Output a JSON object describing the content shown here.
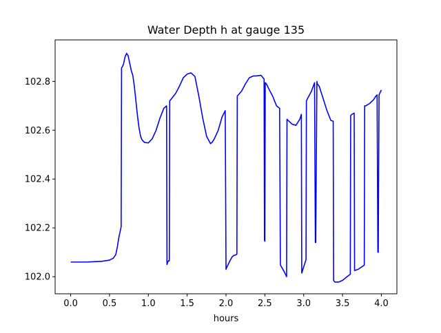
{
  "chart_data": {
    "type": "line",
    "title": "Water Depth h at gauge 135",
    "xlabel": "hours",
    "ylabel": "",
    "xlim": [
      -0.2,
      4.2
    ],
    "ylim": [
      101.93,
      102.97
    ],
    "grid": false,
    "legend": "none",
    "x_ticks": [
      0.0,
      0.5,
      1.0,
      1.5,
      2.0,
      2.5,
      3.0,
      3.5,
      4.0
    ],
    "x_tick_labels": [
      "0.0",
      "0.5",
      "1.0",
      "1.5",
      "2.0",
      "2.5",
      "3.0",
      "3.5",
      "4.0"
    ],
    "y_ticks": [
      102.0,
      102.2,
      102.4,
      102.6,
      102.8
    ],
    "y_tick_labels": [
      "102.0",
      "102.2",
      "102.4",
      "102.6",
      "102.8"
    ],
    "colors": {
      "line": "#0000ff",
      "axes": "#000000",
      "background": "#ffffff"
    },
    "series": [
      {
        "x": [
          0.0,
          0.2,
          0.4,
          0.5,
          0.55,
          0.58,
          0.6,
          0.62,
          0.64,
          0.65,
          0.655,
          0.665,
          0.68,
          0.7,
          0.72,
          0.74,
          0.76,
          0.78,
          0.8,
          0.82,
          0.84,
          0.86,
          0.88,
          0.9,
          0.92,
          0.95,
          1.0,
          1.05,
          1.1,
          1.15,
          1.2,
          1.235,
          1.24,
          1.25,
          1.26,
          1.27,
          1.275,
          1.3,
          1.35,
          1.4,
          1.45,
          1.5,
          1.55,
          1.6,
          1.65,
          1.7,
          1.75,
          1.8,
          1.82,
          1.85,
          1.9,
          1.95,
          1.99,
          2.0,
          2.005,
          2.05,
          2.08,
          2.1,
          2.13,
          2.14,
          2.145,
          2.2,
          2.25,
          2.3,
          2.35,
          2.4,
          2.45,
          2.49,
          2.495,
          2.5,
          2.505,
          2.52,
          2.55,
          2.6,
          2.65,
          2.69,
          2.7,
          2.705,
          2.75,
          2.78,
          2.785,
          2.8,
          2.85,
          2.9,
          2.95,
          2.97,
          2.975,
          3.0,
          3.03,
          3.035,
          3.05,
          3.1,
          3.14,
          3.15,
          3.155,
          3.17,
          3.175,
          3.2,
          3.25,
          3.3,
          3.35,
          3.38,
          3.385,
          3.4,
          3.45,
          3.5,
          3.55,
          3.6,
          3.605,
          3.62,
          3.65,
          3.655,
          3.7,
          3.77,
          3.78,
          3.785,
          3.8,
          3.85,
          3.9,
          3.93,
          3.94,
          3.945,
          3.955,
          3.96,
          3.97,
          4.0
        ],
        "y": [
          102.06,
          102.06,
          102.063,
          102.068,
          102.076,
          102.09,
          102.12,
          102.16,
          102.19,
          102.205,
          102.855,
          102.86,
          102.87,
          102.9,
          102.915,
          102.905,
          102.875,
          102.845,
          102.825,
          102.78,
          102.72,
          102.66,
          102.61,
          102.575,
          102.56,
          102.55,
          102.548,
          102.565,
          102.6,
          102.65,
          102.69,
          102.7,
          102.05,
          102.06,
          102.065,
          102.065,
          102.72,
          102.73,
          102.75,
          102.78,
          102.815,
          102.83,
          102.835,
          102.82,
          102.74,
          102.65,
          102.575,
          102.545,
          102.55,
          102.565,
          102.6,
          102.655,
          102.68,
          102.03,
          102.035,
          102.065,
          102.082,
          102.087,
          102.09,
          102.093,
          102.74,
          102.76,
          102.79,
          102.815,
          102.822,
          102.823,
          102.825,
          102.81,
          102.15,
          102.145,
          102.795,
          102.79,
          102.77,
          102.74,
          102.7,
          102.69,
          102.05,
          102.045,
          102.02,
          102.0,
          102.645,
          102.64,
          102.625,
          102.62,
          102.645,
          102.665,
          102.015,
          102.04,
          102.07,
          102.72,
          102.73,
          102.76,
          102.795,
          102.14,
          102.14,
          102.8,
          102.79,
          102.78,
          102.73,
          102.68,
          102.64,
          102.637,
          101.985,
          101.978,
          101.978,
          101.985,
          101.998,
          102.01,
          102.66,
          102.665,
          102.67,
          102.025,
          102.03,
          102.045,
          102.048,
          102.7,
          102.7,
          102.71,
          102.725,
          102.74,
          102.742,
          102.745,
          102.1,
          102.1,
          102.745,
          102.765
        ]
      }
    ]
  }
}
